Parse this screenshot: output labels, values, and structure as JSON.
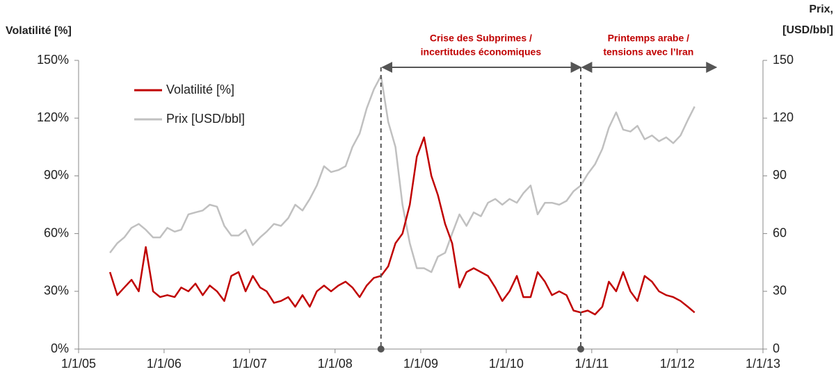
{
  "chart_data": {
    "type": "line",
    "y_title": "Volatilité [%]",
    "y2_title": [
      "Prix,",
      "[USD/bbl]"
    ],
    "x": [
      "2005-05-15",
      "2005-06-15",
      "2005-07-15",
      "2005-08-15",
      "2005-09-15",
      "2005-10-15",
      "2005-11-15",
      "2005-12-15",
      "2006-01-15",
      "2006-02-15",
      "2006-03-15",
      "2006-04-15",
      "2006-05-15",
      "2006-06-15",
      "2006-07-15",
      "2006-08-15",
      "2006-09-15",
      "2006-10-15",
      "2006-11-15",
      "2006-12-15",
      "2007-01-15",
      "2007-02-15",
      "2007-03-15",
      "2007-04-15",
      "2007-05-15",
      "2007-06-15",
      "2007-07-15",
      "2007-08-15",
      "2007-09-15",
      "2007-10-15",
      "2007-11-15",
      "2007-12-15",
      "2008-01-15",
      "2008-02-15",
      "2008-03-15",
      "2008-04-15",
      "2008-05-15",
      "2008-06-15",
      "2008-07-15",
      "2008-08-15",
      "2008-09-15",
      "2008-10-15",
      "2008-11-15",
      "2008-12-15",
      "2009-01-15",
      "2009-02-15",
      "2009-03-15",
      "2009-04-15",
      "2009-05-15",
      "2009-06-15",
      "2009-07-15",
      "2009-08-15",
      "2009-09-15",
      "2009-10-15",
      "2009-11-15",
      "2009-12-15",
      "2010-01-15",
      "2010-02-15",
      "2010-03-15",
      "2010-04-15",
      "2010-05-15",
      "2010-06-15",
      "2010-07-15",
      "2010-08-15",
      "2010-09-15",
      "2010-10-15",
      "2010-11-15",
      "2010-12-15",
      "2011-01-15",
      "2011-02-15",
      "2011-03-15",
      "2011-04-15",
      "2011-05-15",
      "2011-06-15",
      "2011-07-15",
      "2011-08-15",
      "2011-09-15",
      "2011-10-15",
      "2011-11-15",
      "2011-12-15",
      "2012-01-15",
      "2012-02-15",
      "2012-03-15"
    ],
    "series": [
      {
        "name": "Volatilité [%]",
        "color": "#c00000",
        "axis": "y",
        "values": [
          40,
          28,
          32,
          36,
          30,
          53,
          30,
          27,
          28,
          27,
          32,
          30,
          34,
          28,
          33,
          30,
          25,
          38,
          40,
          30,
          38,
          32,
          30,
          24,
          25,
          27,
          22,
          28,
          22,
          30,
          33,
          30,
          33,
          35,
          32,
          27,
          33,
          37,
          38,
          43,
          55,
          60,
          75,
          100,
          110,
          90,
          80,
          65,
          55,
          32,
          40,
          42,
          40,
          38,
          32,
          25,
          30,
          38,
          27,
          27,
          40,
          35,
          28,
          30,
          28,
          20,
          19,
          20,
          18,
          22,
          35,
          30,
          40,
          30,
          25,
          38,
          35,
          30,
          28,
          27,
          25,
          22,
          19
        ]
      },
      {
        "name": "Prix [USD/bbl]",
        "color": "#c0c0c0",
        "axis": "y2",
        "values": [
          50,
          55,
          58,
          63,
          65,
          62,
          58,
          58,
          63,
          61,
          62,
          70,
          71,
          72,
          75,
          74,
          64,
          59,
          59,
          62,
          54,
          58,
          61,
          65,
          64,
          68,
          75,
          72,
          78,
          85,
          95,
          92,
          93,
          95,
          105,
          112,
          125,
          135,
          142,
          118,
          105,
          75,
          55,
          42,
          42,
          40,
          48,
          50,
          60,
          70,
          64,
          71,
          69,
          76,
          78,
          75,
          78,
          76,
          81,
          85,
          70,
          76,
          76,
          75,
          77,
          82,
          85,
          91,
          96,
          104,
          115,
          123,
          114,
          113,
          116,
          109,
          111,
          108,
          110,
          107,
          111,
          119,
          126
        ]
      }
    ],
    "xlim": [
      "2005-01-01",
      "2013-01-01"
    ],
    "xticks": [
      {
        "value": "2005-01-01",
        "label": "1/1/05"
      },
      {
        "value": "2006-01-01",
        "label": "1/1/06"
      },
      {
        "value": "2007-01-01",
        "label": "1/1/07"
      },
      {
        "value": "2008-01-01",
        "label": "1/1/08"
      },
      {
        "value": "2009-01-01",
        "label": "1/1/09"
      },
      {
        "value": "2010-01-01",
        "label": "1/1/10"
      },
      {
        "value": "2011-01-01",
        "label": "1/1/11"
      },
      {
        "value": "2012-01-01",
        "label": "1/1/12"
      },
      {
        "value": "2013-01-01",
        "label": "1/1/13"
      }
    ],
    "ylim": [
      0,
      150
    ],
    "yticks": [
      {
        "value": 0,
        "label": "0%"
      },
      {
        "value": 30,
        "label": "30%"
      },
      {
        "value": 60,
        "label": "60%"
      },
      {
        "value": 90,
        "label": "90%"
      },
      {
        "value": 120,
        "label": "120%"
      },
      {
        "value": 150,
        "label": "150%"
      }
    ],
    "y2lim": [
      0,
      150
    ],
    "y2ticks": [
      0,
      30,
      60,
      90,
      120,
      150
    ],
    "legend": "top-left",
    "annotations": [
      {
        "lines": [
          "Crise des Subprimes /",
          "incertitudes économiques"
        ],
        "start": "2008-07-15",
        "end": "2010-11-15"
      },
      {
        "lines": [
          "Printemps arabe /",
          "tensions avec l’Iran"
        ],
        "start": "2010-11-15",
        "end": "2012-06-15"
      }
    ]
  }
}
